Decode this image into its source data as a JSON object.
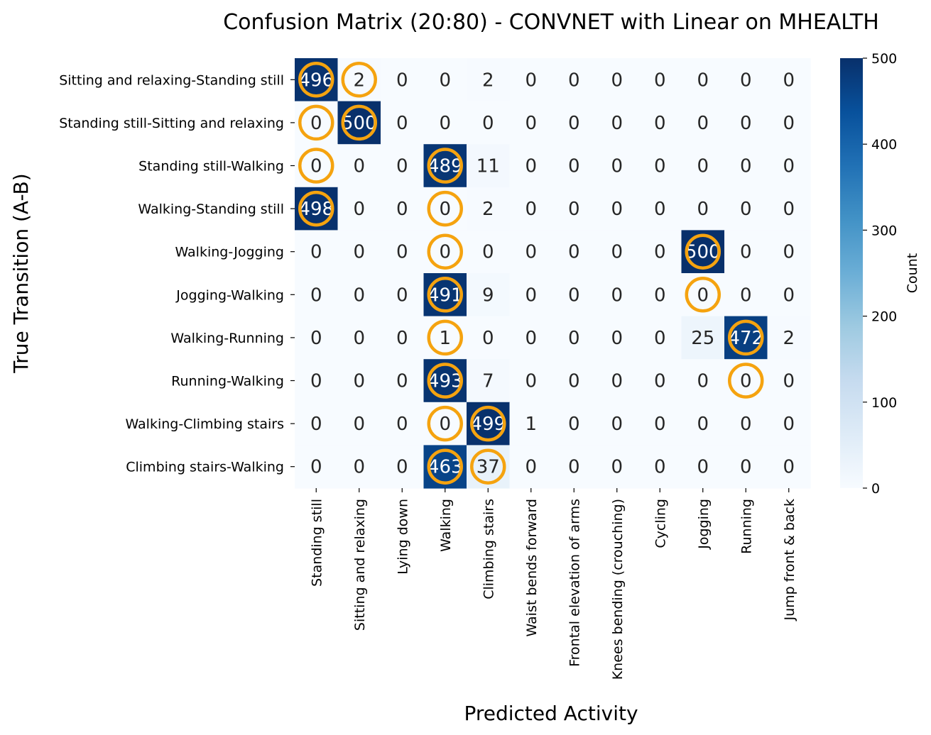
{
  "chart_data": {
    "type": "heatmap",
    "title": "Confusion Matrix (20:80) - CONVNET with Linear on MHEALTH",
    "xlabel": "Predicted Activity",
    "ylabel": "True Transition (A-B)",
    "x_categories": [
      "Standing still",
      "Sitting and relaxing",
      "Lying down",
      "Walking",
      "Climbing stairs",
      "Waist bends forward",
      "Frontal elevation of arms",
      "Knees bending (crouching)",
      "Cycling",
      "Jogging",
      "Running",
      "Jump front & back"
    ],
    "y_categories": [
      "Sitting and relaxing-Standing still",
      "Standing still-Sitting and relaxing",
      "Standing still-Walking",
      "Walking-Standing still",
      "Walking-Jogging",
      "Jogging-Walking",
      "Walking-Running",
      "Running-Walking",
      "Walking-Climbing stairs",
      "Climbing stairs-Walking"
    ],
    "matrix": [
      [
        496,
        2,
        0,
        0,
        2,
        0,
        0,
        0,
        0,
        0,
        0,
        0
      ],
      [
        0,
        500,
        0,
        0,
        0,
        0,
        0,
        0,
        0,
        0,
        0,
        0
      ],
      [
        0,
        0,
        0,
        489,
        11,
        0,
        0,
        0,
        0,
        0,
        0,
        0
      ],
      [
        498,
        0,
        0,
        0,
        2,
        0,
        0,
        0,
        0,
        0,
        0,
        0
      ],
      [
        0,
        0,
        0,
        0,
        0,
        0,
        0,
        0,
        0,
        500,
        0,
        0
      ],
      [
        0,
        0,
        0,
        491,
        9,
        0,
        0,
        0,
        0,
        0,
        0,
        0
      ],
      [
        0,
        0,
        0,
        1,
        0,
        0,
        0,
        0,
        0,
        25,
        472,
        2
      ],
      [
        0,
        0,
        0,
        493,
        7,
        0,
        0,
        0,
        0,
        0,
        0,
        0
      ],
      [
        0,
        0,
        0,
        0,
        499,
        1,
        0,
        0,
        0,
        0,
        0,
        0
      ],
      [
        0,
        0,
        0,
        463,
        37,
        0,
        0,
        0,
        0,
        0,
        0,
        0
      ]
    ],
    "highlighted_cells": [
      [
        0,
        0
      ],
      [
        0,
        1
      ],
      [
        1,
        0
      ],
      [
        1,
        1
      ],
      [
        2,
        0
      ],
      [
        2,
        3
      ],
      [
        3,
        0
      ],
      [
        3,
        3
      ],
      [
        4,
        3
      ],
      [
        4,
        9
      ],
      [
        5,
        3
      ],
      [
        5,
        9
      ],
      [
        6,
        3
      ],
      [
        6,
        10
      ],
      [
        7,
        3
      ],
      [
        7,
        10
      ],
      [
        8,
        3
      ],
      [
        8,
        4
      ],
      [
        9,
        3
      ],
      [
        9,
        4
      ]
    ],
    "highlight_color": "#f5a30f",
    "colormap": "Blues",
    "colorbar": {
      "label": "Count",
      "vmin": 0,
      "vmax": 500,
      "ticks": [
        0,
        100,
        200,
        300,
        400,
        500
      ]
    }
  }
}
